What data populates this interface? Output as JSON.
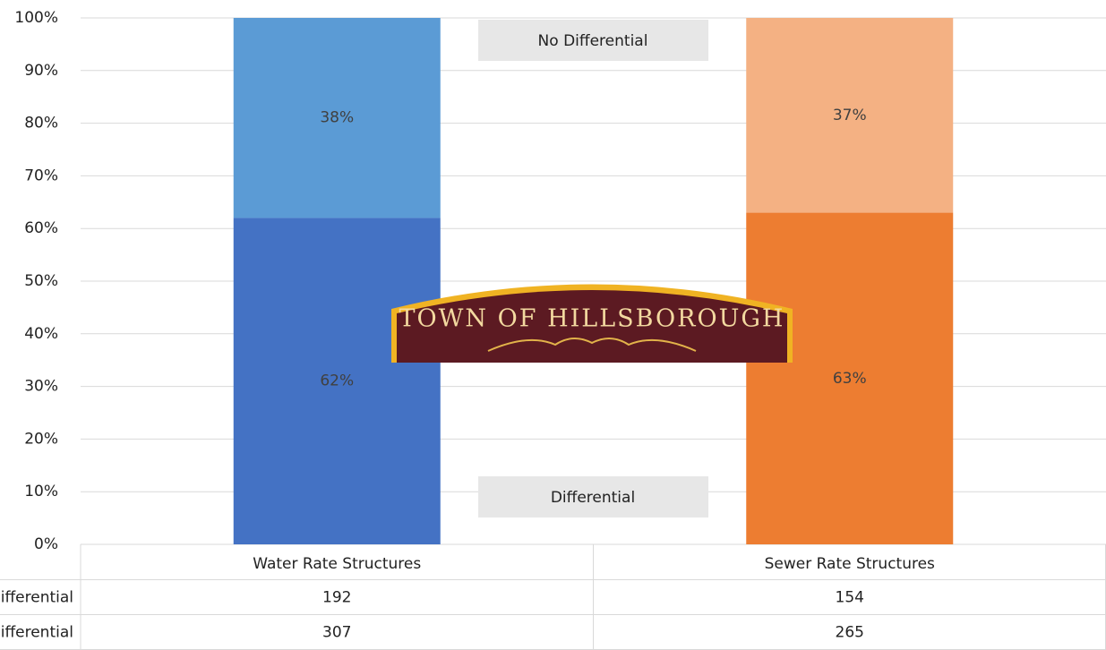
{
  "chart_data": {
    "type": "stacked_bar",
    "categories": [
      "Water Rate Structures",
      "Sewer Rate Structures"
    ],
    "series": [
      {
        "name": "Differential",
        "colors": [
          "#4472c4",
          "#ed7d31"
        ],
        "values": [
          62,
          63
        ],
        "value_labels": [
          "62%",
          "63%"
        ],
        "table_values": [
          307,
          265
        ]
      },
      {
        "name": "No Differential",
        "colors": [
          "#5b9bd5",
          "#f4b183"
        ],
        "values": [
          38,
          37
        ],
        "value_labels": [
          "38%",
          "37%"
        ],
        "table_values": [
          192,
          154
        ]
      }
    ],
    "ylim": [
      0,
      100
    ],
    "yticks": [
      {
        "value": 0,
        "label": "0%"
      },
      {
        "value": 10,
        "label": "10%"
      },
      {
        "value": 20,
        "label": "20%"
      },
      {
        "value": 30,
        "label": "30%"
      },
      {
        "value": 40,
        "label": "40%"
      },
      {
        "value": 50,
        "label": "50%"
      },
      {
        "value": 60,
        "label": "60%"
      },
      {
        "value": 70,
        "label": "70%"
      },
      {
        "value": 80,
        "label": "80%"
      },
      {
        "value": 90,
        "label": "90%"
      },
      {
        "value": 100,
        "label": "100%"
      }
    ],
    "grid": true,
    "logo_text": "TOWN OF HILLSBOROUGH"
  }
}
